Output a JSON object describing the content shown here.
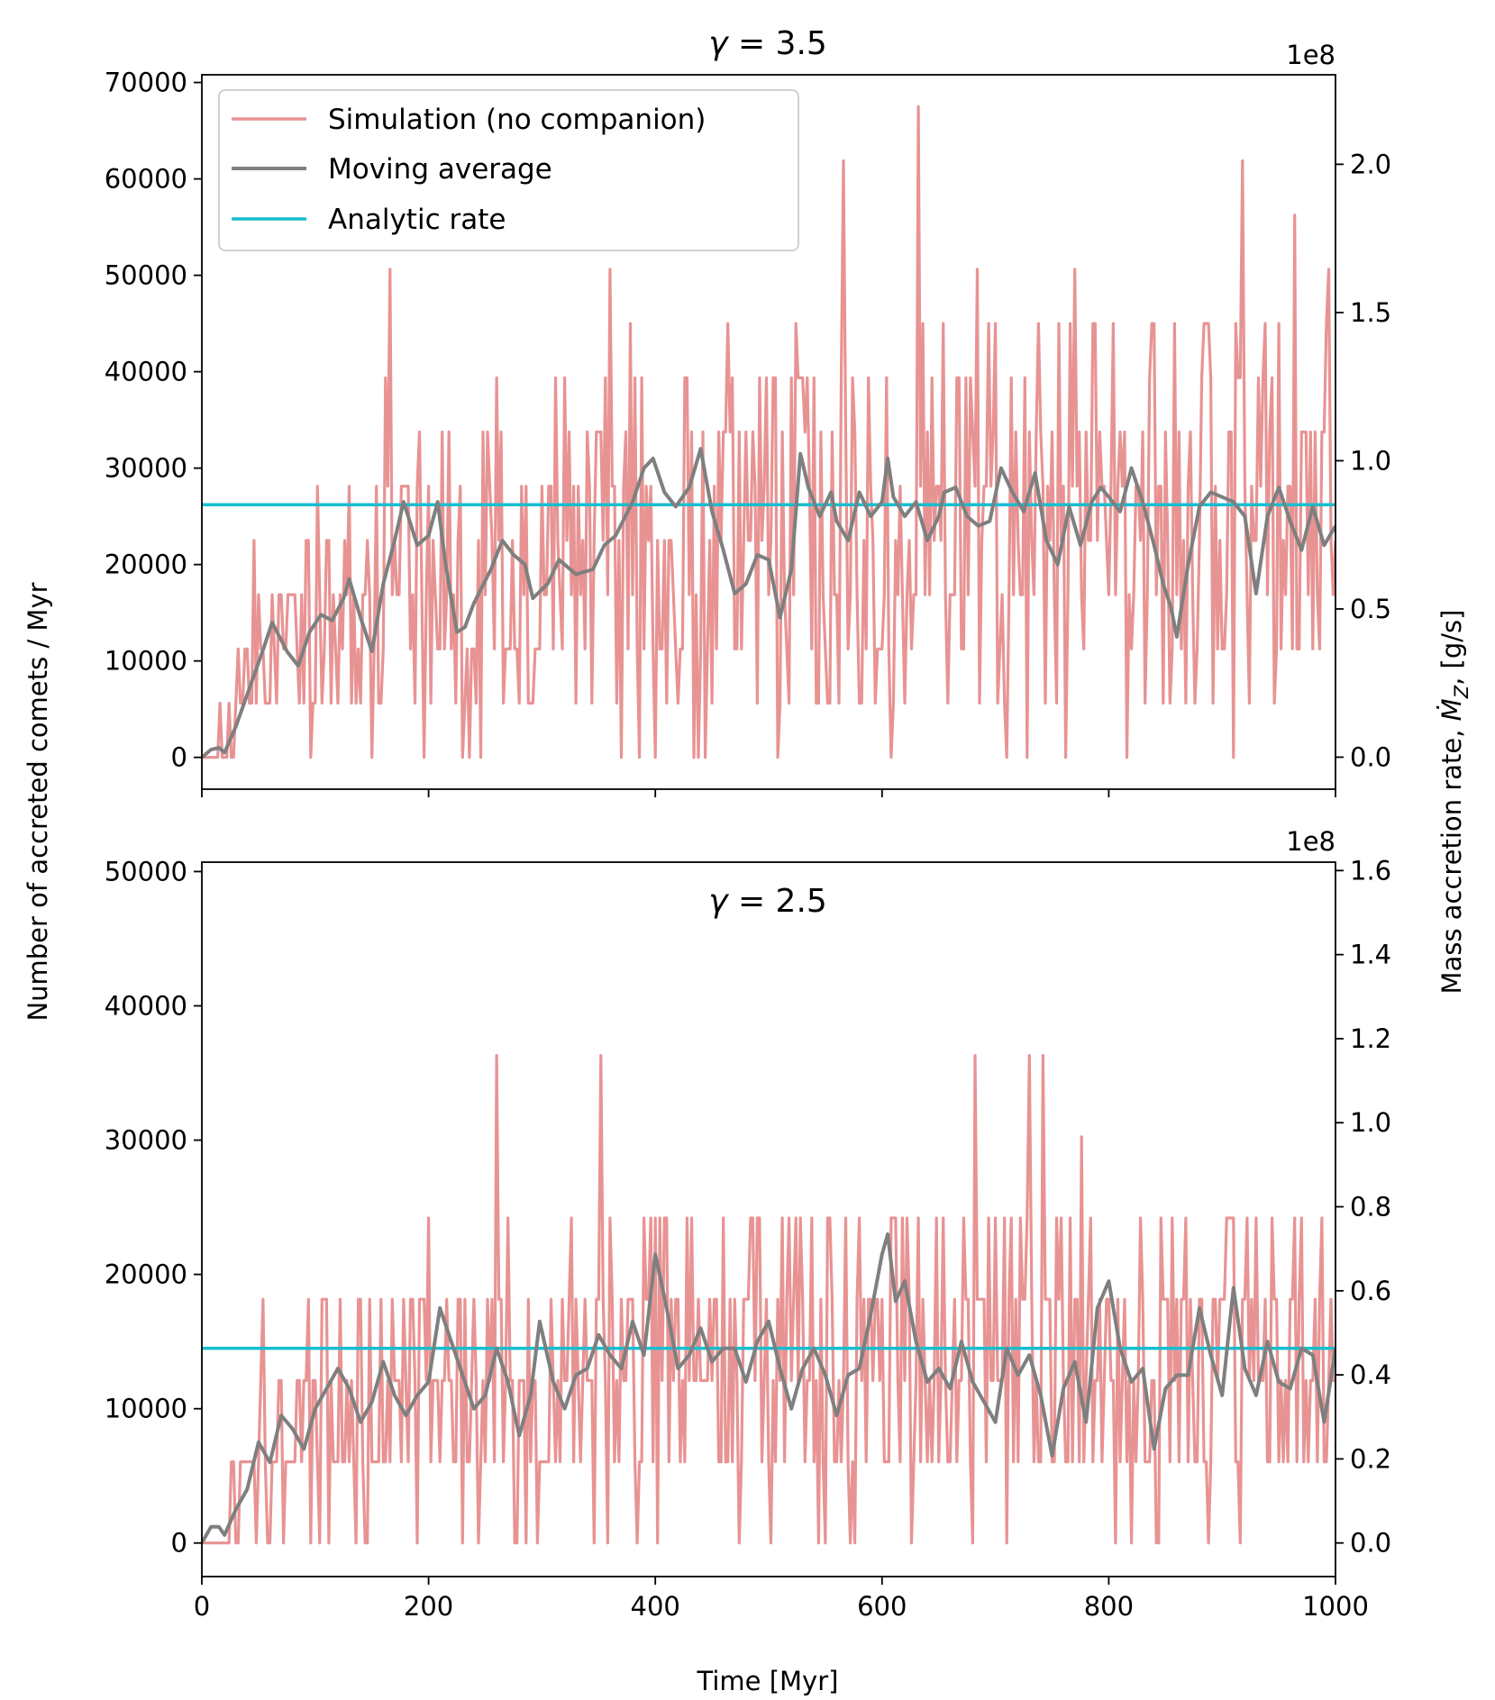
{
  "chart_data": {
    "type": "line",
    "shared_xlabel": "Time [Myr]",
    "shared_ylabel": "Number of accreted comets / Myr",
    "shared_right_ylabel": "Mass accretion rate, Ṁ_Z, [g/s]",
    "right_axis_offset": "1e8",
    "xlim": [
      0,
      1000
    ],
    "xticks": [
      0,
      200,
      400,
      600,
      800,
      1000
    ],
    "legend": {
      "placement": "upper-left",
      "entries": [
        {
          "label": "Simulation (no companion)",
          "color": "#e89393"
        },
        {
          "label": "Moving average",
          "color": "#7f7f7f"
        },
        {
          "label": "Analytic rate",
          "color": "#17becf"
        }
      ]
    },
    "panels": [
      {
        "title_symbol": "γ",
        "title_value": " = 3.5",
        "title_placement": "above",
        "ylim": [
          -3300,
          70800
        ],
        "yticks": [
          0,
          10000,
          20000,
          30000,
          40000,
          50000,
          60000,
          70000
        ],
        "right_ylim": [
          -0.108,
          2.302
        ],
        "right_yticks": [
          0.0,
          0.5,
          1.0,
          1.5,
          2.0
        ],
        "right_ytick_labels": [
          "0.0",
          "0.5",
          "1.0",
          "1.5",
          "2.0"
        ],
        "count_unit": 5625,
        "analytic_rate": 26200,
        "simulation": {
          "step": 2,
          "base_points": [
            [
              0,
              0
            ],
            [
              20,
              3000
            ],
            [
              50,
              9000
            ],
            [
              100,
              14000
            ],
            [
              150,
              17000
            ],
            [
              200,
              20000
            ],
            [
              260,
              22000
            ],
            [
              320,
              22500
            ],
            [
              400,
              26000
            ],
            [
              500,
              24500
            ],
            [
              600,
              25000
            ],
            [
              700,
              25000
            ],
            [
              800,
              25500
            ],
            [
              900,
              26000
            ],
            [
              1000,
              26000
            ]
          ],
          "noise_amplitude": 0.62,
          "seed": 7
        },
        "moving_average_points": [
          [
            0,
            0
          ],
          [
            8,
            800
          ],
          [
            15,
            1000
          ],
          [
            20,
            500
          ],
          [
            30,
            3200
          ],
          [
            40,
            6500
          ],
          [
            55,
            11500
          ],
          [
            62,
            14000
          ],
          [
            75,
            11000
          ],
          [
            85,
            9500
          ],
          [
            95,
            13000
          ],
          [
            105,
            14800
          ],
          [
            115,
            14200
          ],
          [
            125,
            16500
          ],
          [
            130,
            18500
          ],
          [
            140,
            14500
          ],
          [
            150,
            11000
          ],
          [
            160,
            18000
          ],
          [
            170,
            22500
          ],
          [
            178,
            26500
          ],
          [
            190,
            22000
          ],
          [
            200,
            23000
          ],
          [
            208,
            26500
          ],
          [
            215,
            20000
          ],
          [
            225,
            13000
          ],
          [
            232,
            13500
          ],
          [
            240,
            16000
          ],
          [
            255,
            19500
          ],
          [
            265,
            22500
          ],
          [
            275,
            21000
          ],
          [
            285,
            20000
          ],
          [
            292,
            16500
          ],
          [
            305,
            18000
          ],
          [
            315,
            20500
          ],
          [
            330,
            19000
          ],
          [
            345,
            19500
          ],
          [
            355,
            22000
          ],
          [
            365,
            23000
          ],
          [
            380,
            26500
          ],
          [
            390,
            30000
          ],
          [
            398,
            31000
          ],
          [
            408,
            27500
          ],
          [
            418,
            26000
          ],
          [
            430,
            28000
          ],
          [
            440,
            32000
          ],
          [
            450,
            25500
          ],
          [
            460,
            21500
          ],
          [
            470,
            17000
          ],
          [
            480,
            18000
          ],
          [
            490,
            21000
          ],
          [
            500,
            20500
          ],
          [
            510,
            14500
          ],
          [
            520,
            19500
          ],
          [
            528,
            31500
          ],
          [
            535,
            28000
          ],
          [
            545,
            25000
          ],
          [
            555,
            27500
          ],
          [
            560,
            24500
          ],
          [
            570,
            22500
          ],
          [
            580,
            27500
          ],
          [
            590,
            25000
          ],
          [
            600,
            26500
          ],
          [
            605,
            31000
          ],
          [
            610,
            27000
          ],
          [
            620,
            25000
          ],
          [
            630,
            26500
          ],
          [
            640,
            22500
          ],
          [
            650,
            25000
          ],
          [
            655,
            27500
          ],
          [
            665,
            28000
          ],
          [
            675,
            25000
          ],
          [
            685,
            24000
          ],
          [
            695,
            24500
          ],
          [
            705,
            30000
          ],
          [
            715,
            27500
          ],
          [
            725,
            25500
          ],
          [
            735,
            29500
          ],
          [
            745,
            22500
          ],
          [
            755,
            20000
          ],
          [
            765,
            26000
          ],
          [
            775,
            22000
          ],
          [
            785,
            26500
          ],
          [
            793,
            28000
          ],
          [
            800,
            27000
          ],
          [
            810,
            25500
          ],
          [
            820,
            30000
          ],
          [
            830,
            26500
          ],
          [
            840,
            22000
          ],
          [
            848,
            18000
          ],
          [
            855,
            15500
          ],
          [
            860,
            12500
          ],
          [
            870,
            20000
          ],
          [
            880,
            26000
          ],
          [
            890,
            27500
          ],
          [
            900,
            27000
          ],
          [
            910,
            26500
          ],
          [
            920,
            25000
          ],
          [
            930,
            17000
          ],
          [
            940,
            25000
          ],
          [
            950,
            28000
          ],
          [
            960,
            24500
          ],
          [
            970,
            21500
          ],
          [
            980,
            26000
          ],
          [
            990,
            22000
          ],
          [
            1000,
            24000
          ]
        ]
      },
      {
        "title_symbol": "γ",
        "title_value": " = 2.5",
        "title_placement": "inside-top",
        "ylim": [
          -2500,
          50700
        ],
        "yticks": [
          0,
          10000,
          20000,
          30000,
          40000,
          50000
        ],
        "right_ylim": [
          -0.08,
          1.62
        ],
        "right_yticks": [
          0.0,
          0.2,
          0.4,
          0.6,
          0.8,
          1.0,
          1.2,
          1.4,
          1.6
        ],
        "right_ytick_labels": [
          "0.0",
          "0.2",
          "0.4",
          "0.6",
          "0.8",
          "1.0",
          "1.2",
          "1.4",
          "1.6"
        ],
        "count_unit": 6050,
        "analytic_rate": 14500,
        "simulation": {
          "step": 2,
          "base_points": [
            [
              0,
              0
            ],
            [
              20,
              2000
            ],
            [
              50,
              5500
            ],
            [
              100,
              10000
            ],
            [
              150,
              11000
            ],
            [
              200,
              12000
            ],
            [
              300,
              13000
            ],
            [
              400,
              15000
            ],
            [
              500,
              14000
            ],
            [
              600,
              15000
            ],
            [
              700,
              13500
            ],
            [
              800,
              13000
            ],
            [
              900,
              14000
            ],
            [
              1000,
              13000
            ]
          ],
          "noise_amplitude": 0.65,
          "seed": 19
        },
        "moving_average_points": [
          [
            0,
            0
          ],
          [
            8,
            1200
          ],
          [
            15,
            1200
          ],
          [
            20,
            600
          ],
          [
            30,
            2500
          ],
          [
            40,
            4000
          ],
          [
            50,
            7500
          ],
          [
            60,
            6000
          ],
          [
            70,
            9500
          ],
          [
            80,
            8500
          ],
          [
            90,
            7000
          ],
          [
            100,
            10000
          ],
          [
            110,
            11500
          ],
          [
            120,
            13000
          ],
          [
            130,
            11500
          ],
          [
            140,
            9000
          ],
          [
            150,
            10500
          ],
          [
            160,
            13500
          ],
          [
            170,
            11000
          ],
          [
            180,
            9500
          ],
          [
            190,
            11000
          ],
          [
            200,
            12000
          ],
          [
            210,
            17500
          ],
          [
            220,
            15000
          ],
          [
            230,
            12500
          ],
          [
            240,
            10000
          ],
          [
            250,
            11000
          ],
          [
            260,
            14500
          ],
          [
            270,
            12000
          ],
          [
            280,
            8000
          ],
          [
            290,
            11000
          ],
          [
            298,
            16500
          ],
          [
            310,
            12000
          ],
          [
            320,
            10000
          ],
          [
            330,
            12500
          ],
          [
            340,
            13000
          ],
          [
            350,
            15500
          ],
          [
            360,
            14000
          ],
          [
            370,
            13000
          ],
          [
            380,
            16500
          ],
          [
            390,
            14000
          ],
          [
            400,
            21500
          ],
          [
            410,
            17500
          ],
          [
            420,
            13000
          ],
          [
            430,
            14000
          ],
          [
            440,
            16000
          ],
          [
            450,
            13500
          ],
          [
            460,
            14500
          ],
          [
            470,
            14500
          ],
          [
            480,
            12000
          ],
          [
            490,
            15000
          ],
          [
            500,
            16500
          ],
          [
            510,
            13000
          ],
          [
            520,
            10000
          ],
          [
            530,
            13000
          ],
          [
            540,
            14500
          ],
          [
            550,
            12500
          ],
          [
            560,
            9500
          ],
          [
            570,
            12500
          ],
          [
            580,
            13000
          ],
          [
            590,
            17000
          ],
          [
            600,
            21500
          ],
          [
            605,
            23000
          ],
          [
            612,
            18000
          ],
          [
            620,
            19500
          ],
          [
            630,
            15000
          ],
          [
            640,
            12000
          ],
          [
            650,
            13000
          ],
          [
            660,
            11500
          ],
          [
            670,
            15000
          ],
          [
            680,
            12000
          ],
          [
            690,
            10500
          ],
          [
            700,
            9000
          ],
          [
            710,
            14500
          ],
          [
            720,
            12500
          ],
          [
            730,
            14000
          ],
          [
            740,
            11000
          ],
          [
            750,
            6500
          ],
          [
            760,
            11500
          ],
          [
            770,
            13500
          ],
          [
            780,
            9000
          ],
          [
            790,
            17500
          ],
          [
            800,
            19500
          ],
          [
            810,
            14500
          ],
          [
            820,
            12000
          ],
          [
            830,
            13000
          ],
          [
            840,
            7000
          ],
          [
            850,
            11500
          ],
          [
            860,
            12500
          ],
          [
            870,
            12500
          ],
          [
            880,
            17500
          ],
          [
            890,
            14000
          ],
          [
            900,
            11000
          ],
          [
            910,
            19000
          ],
          [
            920,
            13000
          ],
          [
            930,
            11000
          ],
          [
            940,
            15000
          ],
          [
            950,
            12000
          ],
          [
            960,
            11500
          ],
          [
            970,
            14500
          ],
          [
            980,
            14000
          ],
          [
            990,
            9000
          ],
          [
            1000,
            14500
          ]
        ]
      }
    ]
  },
  "colors": {
    "simulation": "#e89393",
    "moving_average": "#7f7f7f",
    "analytic": "#17becf"
  }
}
